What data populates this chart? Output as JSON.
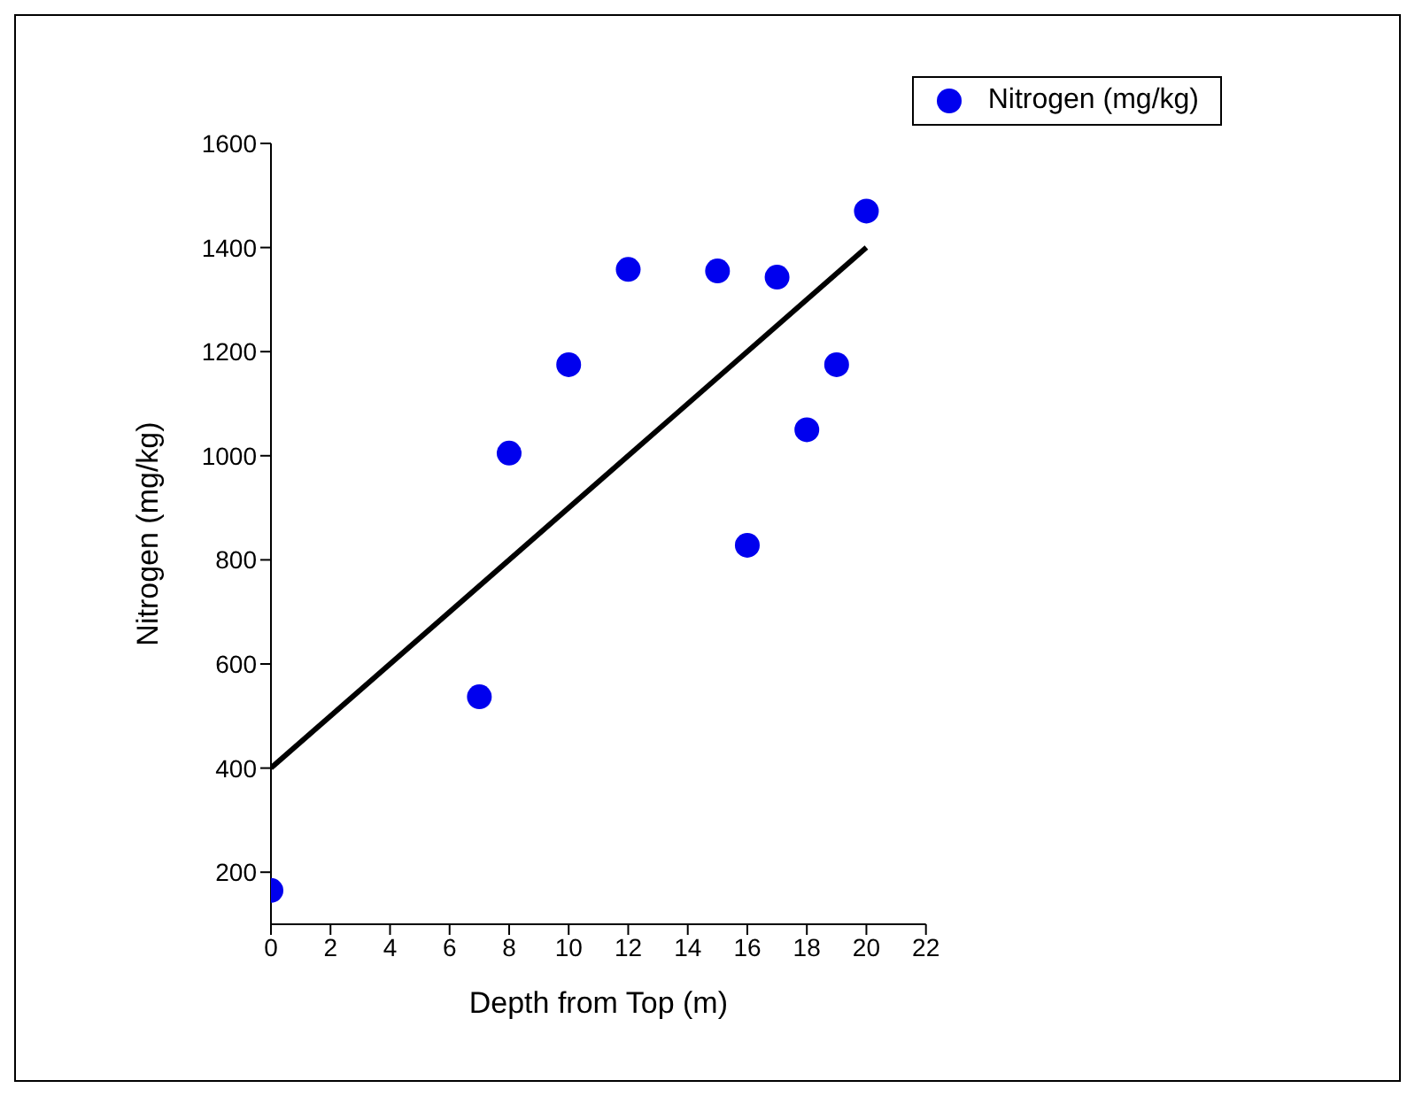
{
  "chart_data": {
    "type": "scatter",
    "xlabel": "Depth from Top (m)",
    "ylabel": "Nitrogen (mg/kg)",
    "x": [
      0,
      7,
      8,
      10,
      12,
      15,
      16,
      17,
      18,
      19,
      20
    ],
    "series": [
      {
        "name": "Nitrogen (mg/kg)",
        "color": "#0000ee",
        "marker": "circle",
        "values": [
          165,
          537,
          1005,
          1175,
          1358,
          1355,
          828,
          1343,
          1050,
          1175,
          1470
        ]
      },
      {
        "type": "line",
        "color": "#000000",
        "x": [
          0,
          20
        ],
        "values": [
          400,
          1400
        ]
      }
    ],
    "xlim": [
      0,
      22
    ],
    "xticks": [
      0,
      2,
      4,
      6,
      8,
      10,
      12,
      14,
      16,
      18,
      20,
      22
    ],
    "ylim": [
      100,
      1600
    ],
    "yticks": [
      200,
      400,
      600,
      800,
      1000,
      1200,
      1400,
      1600
    ],
    "grid": false,
    "legend": "top right"
  }
}
